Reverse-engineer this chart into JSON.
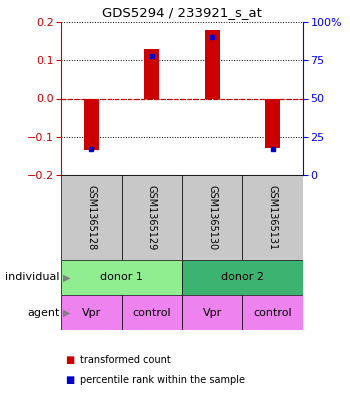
{
  "title": "GDS5294 / 233921_s_at",
  "samples": [
    "GSM1365128",
    "GSM1365129",
    "GSM1365130",
    "GSM1365131"
  ],
  "red_values": [
    -0.135,
    0.13,
    0.178,
    -0.13
  ],
  "blue_values": [
    -0.132,
    0.112,
    0.162,
    -0.132
  ],
  "ylim": [
    -0.2,
    0.2
  ],
  "y_right_ticks": [
    0,
    25,
    50,
    75,
    100
  ],
  "y_left_ticks": [
    -0.2,
    -0.1,
    0,
    0.1,
    0.2
  ],
  "donor1_light_color": "#90EE90",
  "donor2_dark_color": "#3CB371",
  "agent_color": "#EE82EE",
  "gray_color": "#C8C8C8",
  "red_color": "#CC0000",
  "blue_color": "#0000CC",
  "bar_width": 0.25,
  "legend_red": "transformed count",
  "legend_blue": "percentile rank within the sample",
  "agent_names": [
    "Vpr",
    "control",
    "Vpr",
    "control"
  ]
}
